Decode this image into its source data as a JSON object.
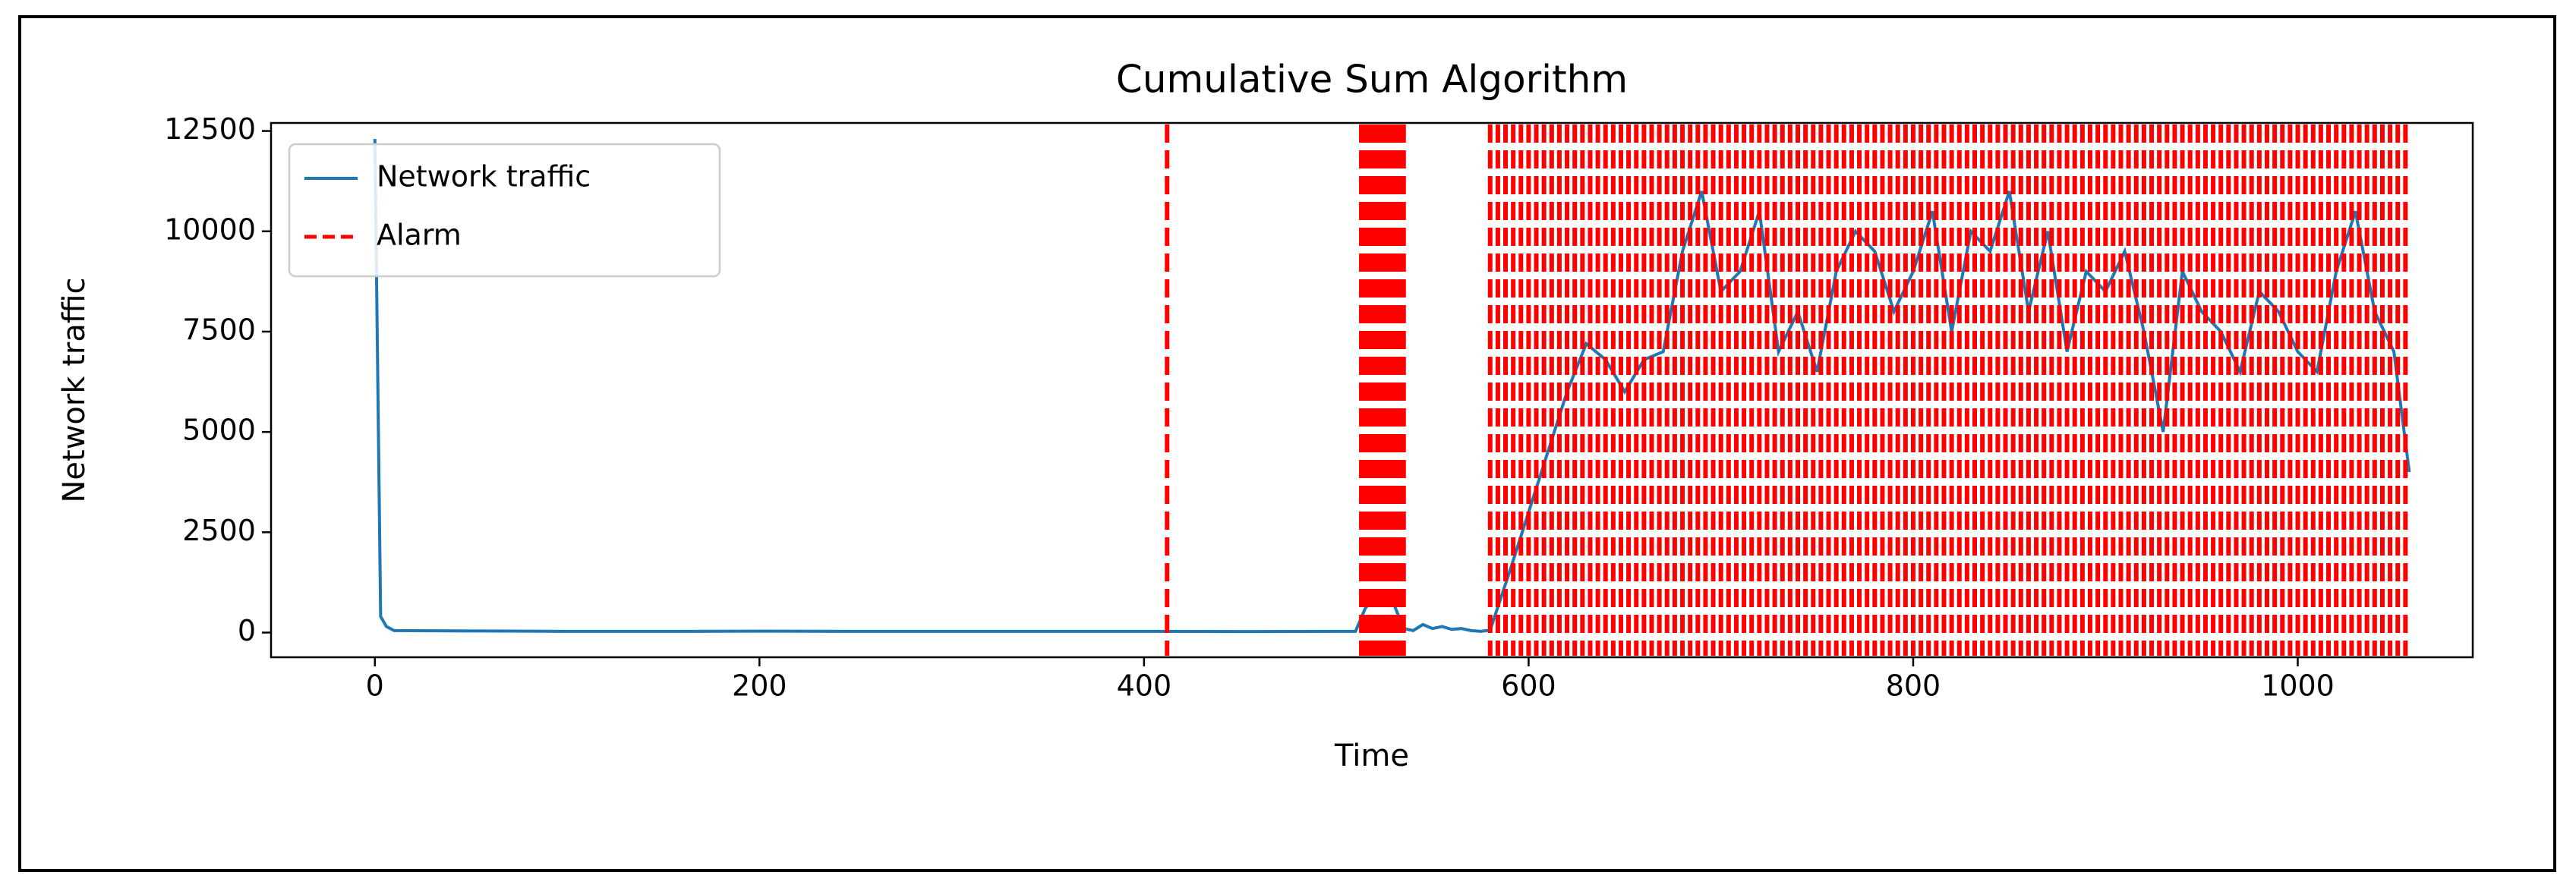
{
  "chart_data": {
    "type": "line",
    "title": "Cumulative Sum Algorithm",
    "x_label": "Time",
    "y_label": "Network traffic",
    "x": [
      0,
      3,
      6,
      10,
      50,
      100,
      150,
      200,
      250,
      300,
      350,
      400,
      450,
      500,
      510,
      515,
      520,
      525,
      530,
      535,
      540,
      545,
      550,
      555,
      560,
      565,
      570,
      575,
      580,
      590,
      600,
      610,
      620,
      630,
      640,
      650,
      660,
      670,
      680,
      690,
      700,
      710,
      720,
      730,
      740,
      750,
      760,
      770,
      780,
      790,
      800,
      810,
      820,
      830,
      840,
      850,
      860,
      870,
      880,
      890,
      900,
      910,
      920,
      930,
      940,
      950,
      960,
      970,
      980,
      990,
      1000,
      1010,
      1020,
      1030,
      1040,
      1050,
      1058
    ],
    "series": [
      {
        "name": "Network traffic",
        "color": "#1f77b4",
        "values": [
          12300,
          400,
          150,
          50,
          40,
          30,
          30,
          35,
          30,
          30,
          30,
          30,
          25,
          30,
          30,
          600,
          900,
          800,
          700,
          100,
          50,
          200,
          100,
          150,
          80,
          100,
          50,
          30,
          60,
          1500,
          3000,
          4500,
          6000,
          7200,
          6800,
          6000,
          6800,
          7000,
          9500,
          11000,
          8500,
          9000,
          10500,
          7000,
          8000,
          6500,
          9000,
          10000,
          9500,
          8000,
          9000,
          10500,
          7500,
          10000,
          9500,
          11000,
          8000,
          10000,
          7000,
          9000,
          8500,
          9500,
          7500,
          5000,
          9000,
          8000,
          7500,
          6500,
          8500,
          8000,
          7000,
          6500,
          9000,
          10500,
          8000,
          7000,
          4000
        ]
      }
    ],
    "alarms": {
      "name": "Alarm",
      "color": "#ff0000",
      "x": [
        412,
        513,
        515,
        517,
        519,
        521,
        523,
        525,
        527,
        529,
        531,
        533,
        535,
        580,
        584,
        588,
        592,
        596,
        600,
        604,
        608,
        612,
        616,
        620,
        624,
        628,
        632,
        636,
        640,
        644,
        648,
        652,
        656,
        660,
        664,
        668,
        672,
        676,
        680,
        684,
        688,
        692,
        696,
        700,
        704,
        708,
        712,
        716,
        720,
        724,
        728,
        732,
        736,
        740,
        744,
        748,
        752,
        756,
        760,
        764,
        768,
        772,
        776,
        780,
        784,
        788,
        792,
        796,
        800,
        804,
        808,
        812,
        816,
        820,
        824,
        828,
        832,
        836,
        840,
        844,
        848,
        852,
        856,
        860,
        864,
        868,
        872,
        876,
        880,
        884,
        888,
        892,
        896,
        900,
        904,
        908,
        912,
        916,
        920,
        924,
        928,
        932,
        936,
        940,
        944,
        948,
        952,
        956,
        960,
        964,
        968,
        972,
        976,
        980,
        984,
        988,
        992,
        996,
        1000,
        1004,
        1008,
        1012,
        1016,
        1020,
        1024,
        1028,
        1032,
        1036,
        1040,
        1044,
        1048,
        1052,
        1056
      ]
    },
    "xlim": [
      -54,
      1091
    ],
    "ylim": [
      -615,
      12700
    ],
    "xticks": [
      0,
      200,
      400,
      600,
      800,
      1000
    ],
    "yticks": [
      0,
      2500,
      5000,
      7500,
      10000,
      12500
    ],
    "legend": "upper left"
  }
}
